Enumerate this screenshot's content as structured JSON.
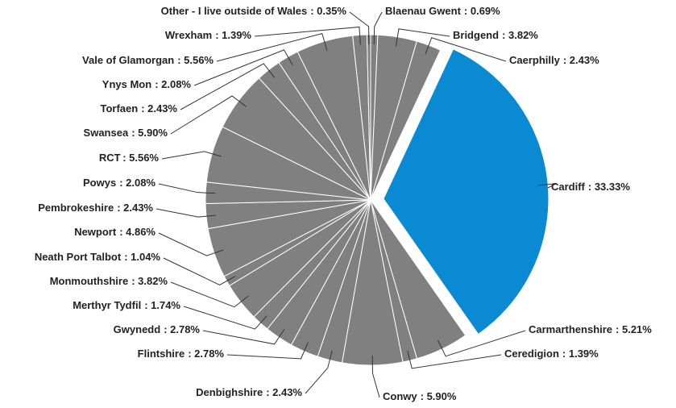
{
  "chart_data": {
    "type": "pie",
    "categories": [
      "Blaenau Gwent",
      "Bridgend",
      "Caerphilly",
      "Cardiff",
      "Carmarthenshire",
      "Ceredigion",
      "Conwy",
      "Denbighshire",
      "Flintshire",
      "Gwynedd",
      "Merthyr Tydfil",
      "Monmouthshire",
      "Neath Port Talbot",
      "Newport",
      "Pembrokeshire",
      "Powys",
      "RCT",
      "Swansea",
      "Torfaen",
      "Ynys Mon",
      "Vale of Glamorgan",
      "Wrexham",
      "Other - I live outside of Wales"
    ],
    "values": [
      0.69,
      3.82,
      2.43,
      33.33,
      5.21,
      1.39,
      5.9,
      2.43,
      2.78,
      2.78,
      1.74,
      3.82,
      1.04,
      4.86,
      2.43,
      2.08,
      5.56,
      5.9,
      2.43,
      2.08,
      5.56,
      1.39,
      0.35
    ],
    "value_labels": [
      ": 0.69%",
      ": 3.82%",
      ": 2.43%",
      ": 33.33%",
      ": 5.21%",
      ": 1.39%",
      ": 5.90%",
      ": 2.43%",
      ": 2.78%",
      ": 2.78%",
      ": 1.74%",
      ": 3.82%",
      ": 1.04%",
      ": 4.86%",
      ": 2.43%",
      ": 2.08%",
      ": 5.56%",
      ": 5.90%",
      ": 2.43%",
      ": 2.08%",
      ": 5.56%",
      ": 1.39%",
      ": 0.35%"
    ],
    "colors": [
      "#808080",
      "#808080",
      "#808080",
      "#0a8ad2",
      "#808080",
      "#808080",
      "#808080",
      "#808080",
      "#808080",
      "#808080",
      "#808080",
      "#808080",
      "#808080",
      "#808080",
      "#808080",
      "#808080",
      "#808080",
      "#808080",
      "#808080",
      "#808080",
      "#808080",
      "#808080",
      "#808080"
    ]
  }
}
